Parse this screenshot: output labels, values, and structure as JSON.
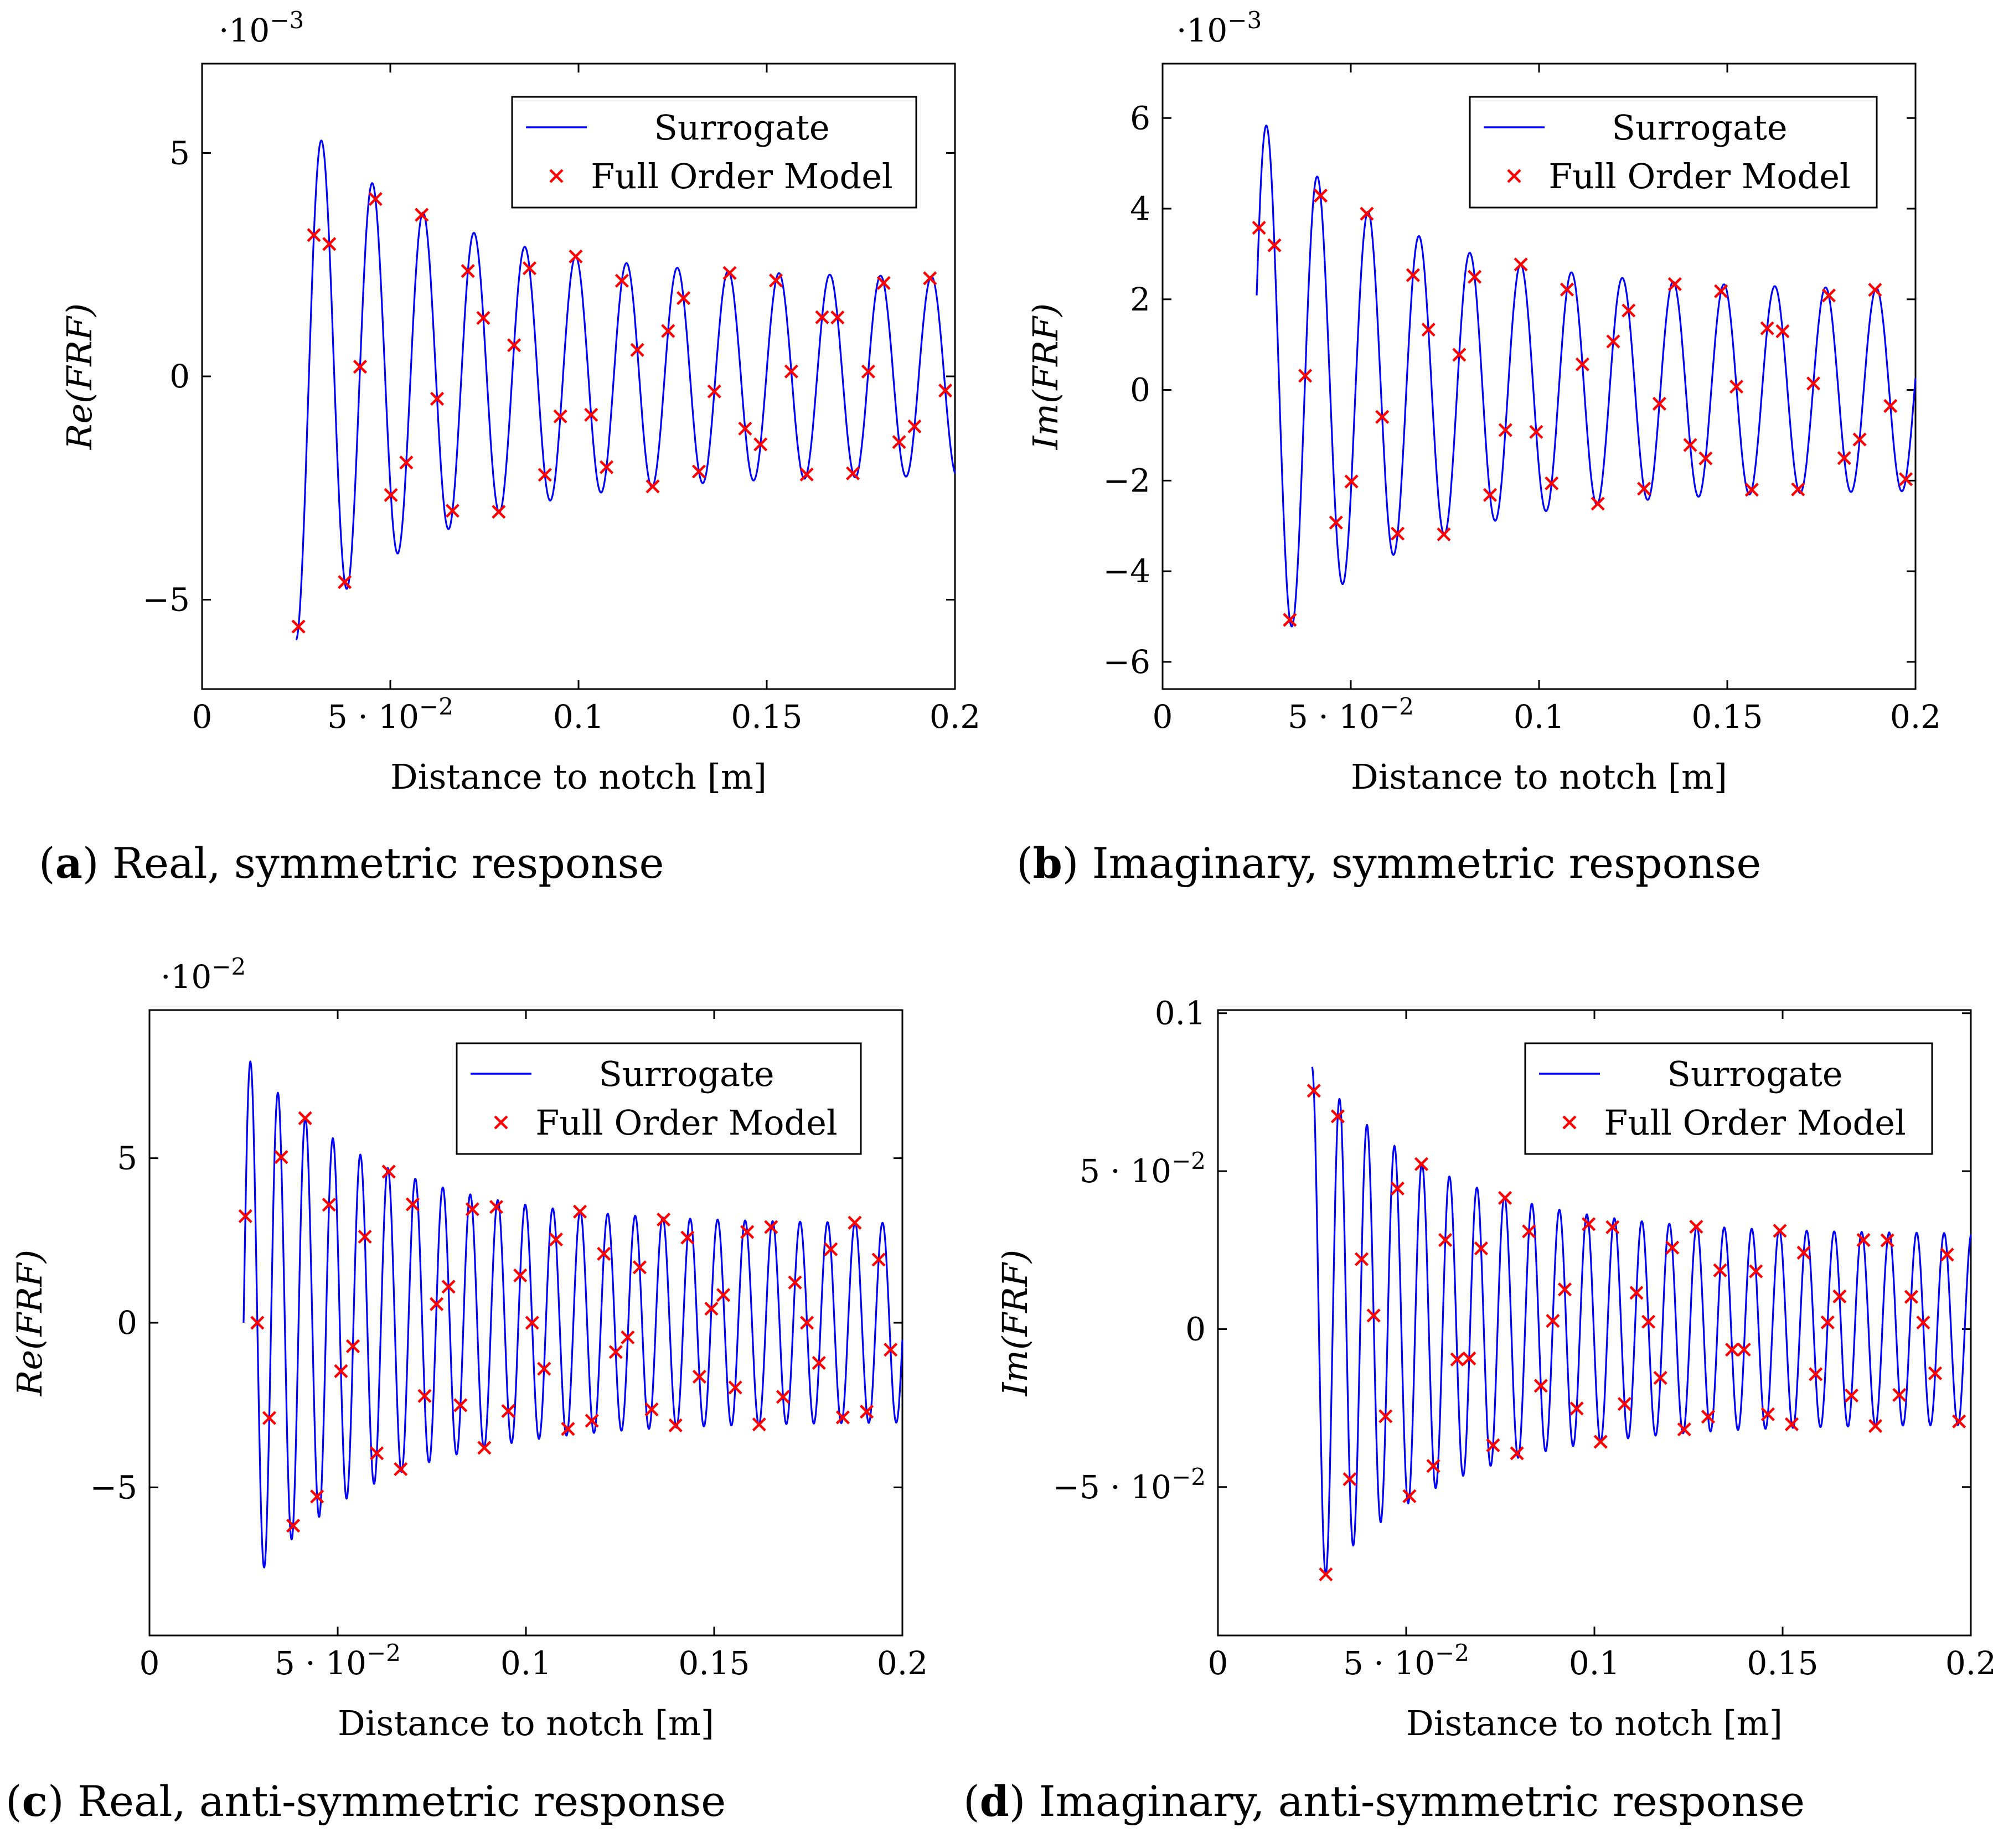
{
  "chart_data": [
    {
      "id": "a",
      "type": "line",
      "caption_label": "a",
      "caption_text": " Real, symmetric response",
      "xlabel": "Distance to notch [m]",
      "ylabel": "Re(FRF)",
      "multiplier_base": "·10",
      "multiplier_exp": "−3",
      "xlim": [
        0,
        0.2
      ],
      "ylim": [
        -7,
        7
      ],
      "xticks": [
        {
          "v": 0,
          "t": "0"
        },
        {
          "v": 0.05,
          "t": "5 · 10",
          "e": "−2"
        },
        {
          "v": 0.1,
          "t": "0.1"
        },
        {
          "v": 0.15,
          "t": "0.15"
        },
        {
          "v": 0.2,
          "t": "0.2"
        }
      ],
      "yticks": [
        {
          "v": -5,
          "t": "−5"
        },
        {
          "v": 0,
          "t": "0"
        },
        {
          "v": 5,
          "t": "5"
        }
      ],
      "legend": [
        "Surrogate",
        "Full Order Model"
      ],
      "series": [
        {
          "name": "Surrogate",
          "style": "line",
          "color": "#0000ff",
          "start": 0.025,
          "end": 0.2,
          "wavelength": 0.0135,
          "amp_start": 5.9,
          "amp_end": 2.2,
          "decay": 1.6,
          "phase_deg": 270
        },
        {
          "name": "Full Order Model",
          "style": "marker",
          "color": "#ff0000",
          "samples_per_cycle": 3.3
        }
      ]
    },
    {
      "id": "b",
      "type": "line",
      "caption_label": "b",
      "caption_text": " Imaginary, symmetric response",
      "xlabel": "Distance to notch [m]",
      "ylabel": "Im(FRF)",
      "multiplier_base": "·10",
      "multiplier_exp": "−3",
      "xlim": [
        0,
        0.2
      ],
      "ylim": [
        -6.6,
        7.2
      ],
      "xticks": [
        {
          "v": 0,
          "t": "0"
        },
        {
          "v": 0.05,
          "t": "5 · 10",
          "e": "−2"
        },
        {
          "v": 0.1,
          "t": "0.1"
        },
        {
          "v": 0.15,
          "t": "0.15"
        },
        {
          "v": 0.2,
          "t": "0.2"
        }
      ],
      "yticks": [
        {
          "v": -6,
          "t": "−6"
        },
        {
          "v": -4,
          "t": "−4"
        },
        {
          "v": -2,
          "t": "−2"
        },
        {
          "v": 0,
          "t": "0"
        },
        {
          "v": 2,
          "t": "2"
        },
        {
          "v": 4,
          "t": "4"
        },
        {
          "v": 6,
          "t": "6"
        }
      ],
      "legend": [
        "Surrogate",
        "Full Order Model"
      ],
      "series": [
        {
          "name": "Surrogate",
          "style": "line",
          "color": "#0000ff",
          "start": 0.025,
          "end": 0.2,
          "wavelength": 0.0135,
          "amp_start": 6.1,
          "amp_end": 2.2,
          "decay": 1.6,
          "phase_deg": 20
        },
        {
          "name": "Full Order Model",
          "style": "marker",
          "color": "#ff0000",
          "samples_per_cycle": 3.3
        }
      ]
    },
    {
      "id": "c",
      "type": "line",
      "caption_label": "c",
      "caption_text": " Real, anti-symmetric response",
      "xlabel": "Distance to notch [m]",
      "ylabel": "Re(FRF)",
      "multiplier_base": "·10",
      "multiplier_exp": "−2",
      "xlim": [
        0,
        0.2
      ],
      "ylim": [
        -9.5,
        9.5
      ],
      "xticks": [
        {
          "v": 0,
          "t": "0"
        },
        {
          "v": 0.05,
          "t": "5 · 10",
          "e": "−2"
        },
        {
          "v": 0.1,
          "t": "0.1"
        },
        {
          "v": 0.15,
          "t": "0.15"
        },
        {
          "v": 0.2,
          "t": "0.2"
        }
      ],
      "yticks": [
        {
          "v": -5,
          "t": "−5"
        },
        {
          "v": 0,
          "t": "0"
        },
        {
          "v": 5,
          "t": "5"
        }
      ],
      "legend": [
        "Surrogate",
        "Full Order Model"
      ],
      "series": [
        {
          "name": "Surrogate",
          "style": "line",
          "color": "#0000ff",
          "start": 0.025,
          "end": 0.2,
          "wavelength": 0.0073,
          "amp_start": 8.2,
          "amp_end": 3.0,
          "decay": 1.7,
          "phase_deg": 0
        },
        {
          "name": "Full Order Model",
          "style": "marker",
          "color": "#ff0000",
          "samples_per_cycle": 2.3
        }
      ]
    },
    {
      "id": "d",
      "type": "line",
      "caption_label": "d",
      "caption_text": " Imaginary, anti-symmetric response",
      "xlabel": "Distance to notch [m]",
      "ylabel": "Im(FRF)",
      "multiplier_base": "",
      "multiplier_exp": "",
      "xlim": [
        0,
        0.2
      ],
      "ylim": [
        -0.097,
        0.101
      ],
      "xticks": [
        {
          "v": 0,
          "t": "0"
        },
        {
          "v": 0.05,
          "t": "5 · 10",
          "e": "−2"
        },
        {
          "v": 0.1,
          "t": "0.1"
        },
        {
          "v": 0.15,
          "t": "0.15"
        },
        {
          "v": 0.2,
          "t": "0.2"
        }
      ],
      "yticks": [
        {
          "v": -0.05,
          "t": "−5 · 10",
          "e": "−2"
        },
        {
          "v": 0,
          "t": "0"
        },
        {
          "v": 0.05,
          "t": "5 · 10",
          "e": "−2"
        },
        {
          "v": 0.1,
          "t": "0.1"
        }
      ],
      "legend": [
        "Surrogate",
        "Full Order Model"
      ],
      "series": [
        {
          "name": "Surrogate",
          "style": "line",
          "color": "#0000ff",
          "start": 0.025,
          "end": 0.2,
          "wavelength": 0.0073,
          "amp_start": 0.083,
          "amp_end": 0.03,
          "decay": 1.7,
          "phase_deg": 90
        },
        {
          "name": "Full Order Model",
          "style": "marker",
          "color": "#ff0000",
          "samples_per_cycle": 2.3
        }
      ]
    }
  ]
}
